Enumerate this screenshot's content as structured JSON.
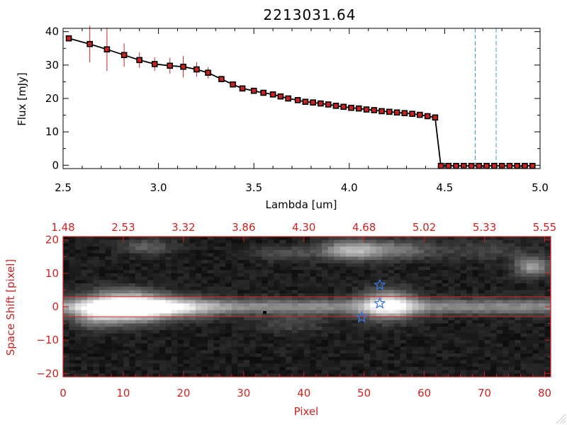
{
  "title": "2213031.64",
  "chart_data": [
    {
      "type": "line",
      "xlabel": "Lambda [um]",
      "ylabel": "Flux [mJy]",
      "xlim": [
        2.5,
        5.0
      ],
      "ylim": [
        -1,
        41
      ],
      "xticks": [
        2.5,
        3.0,
        3.5,
        4.0,
        4.5,
        5.0
      ],
      "xtick_labels": [
        "2.5",
        "3.0",
        "3.5",
        "4.0",
        "4.5",
        "5.0"
      ],
      "yticks": [
        0,
        10,
        20,
        30,
        40
      ],
      "ytick_labels": [
        "0",
        "10",
        "20",
        "30",
        "40"
      ],
      "grid": false,
      "colors": {
        "line": "#000000",
        "marker": "#cc2222",
        "error": "#cc2222",
        "vline": "#3aa0c8"
      },
      "vlines": [
        4.66,
        4.77
      ],
      "series": [
        {
          "x": [
            2.53,
            2.64,
            2.73,
            2.82,
            2.9,
            2.98,
            3.06,
            3.13,
            3.2,
            3.26,
            3.33,
            3.39,
            3.44,
            3.5,
            3.55,
            3.6,
            3.64,
            3.68,
            3.73,
            3.77,
            3.81,
            3.85,
            3.89,
            3.93,
            3.97,
            4.01,
            4.05,
            4.09,
            4.13,
            4.17,
            4.21,
            4.25,
            4.29,
            4.33,
            4.37,
            4.41,
            4.45,
            4.48,
            4.52,
            4.56,
            4.6,
            4.64,
            4.68,
            4.72,
            4.76,
            4.8,
            4.84,
            4.88,
            4.92,
            4.96
          ],
          "y": [
            38.0,
            36.3,
            34.7,
            33.0,
            31.5,
            30.3,
            29.8,
            29.5,
            28.7,
            27.7,
            25.8,
            24.2,
            23.0,
            22.3,
            21.7,
            21.2,
            20.6,
            20.0,
            19.5,
            19.0,
            18.8,
            18.5,
            18.2,
            17.8,
            17.5,
            17.2,
            17.0,
            16.7,
            16.5,
            16.2,
            16.0,
            15.8,
            15.6,
            15.4,
            15.1,
            14.7,
            14.3,
            -0.2,
            -0.2,
            -0.2,
            -0.2,
            -0.2,
            -0.2,
            -0.2,
            -0.2,
            -0.2,
            -0.2,
            -0.2,
            -0.2,
            -0.2
          ],
          "yerr": [
            0.8,
            5.5,
            6.5,
            3.5,
            2.3,
            2.0,
            2.4,
            3.2,
            2.2,
            1.7,
            1.0,
            0.6,
            0.5,
            0.4,
            0.4,
            0.3,
            0.3,
            0.3,
            0.3,
            0.3,
            0.3,
            0.3,
            0.3,
            0.3,
            0.3,
            0.3,
            0.3,
            0.3,
            0.3,
            0.3,
            0.3,
            0.3,
            0.3,
            0.3,
            0.3,
            0.3,
            0.3,
            0.2,
            0.2,
            0.2,
            0.2,
            0.2,
            0.2,
            0.2,
            0.2,
            0.2,
            0.2,
            0.2,
            0.2,
            0.2
          ]
        }
      ]
    },
    {
      "type": "heatmap",
      "xlabel": "Pixel",
      "ylabel": "Space Shift [pixel]",
      "xlim": [
        0,
        81
      ],
      "ylim": [
        -21,
        21
      ],
      "xticks": [
        0,
        10,
        20,
        30,
        40,
        50,
        60,
        70,
        80
      ],
      "xtick_labels": [
        "0",
        "10",
        "20",
        "30",
        "40",
        "50",
        "60",
        "70",
        "80"
      ],
      "yticks": [
        -20,
        -10,
        0,
        10,
        20
      ],
      "ytick_labels": [
        "−20",
        "−10",
        "0",
        "10",
        "20"
      ],
      "top_tick_labels": [
        "1.48",
        "2.53",
        "3.32",
        "3.86",
        "4.30",
        "4.68",
        "5.02",
        "5.33",
        "5.55"
      ],
      "colors": {
        "axis": "#cc2222",
        "star": "#3a78d8"
      },
      "hlines": [
        3,
        -3
      ],
      "stars": [
        {
          "x": 52.6,
          "y": 6.5
        },
        {
          "x": 52.6,
          "y": 1.0
        },
        {
          "x": 49.6,
          "y": -3.2
        }
      ],
      "blobs": [
        {
          "x": 10,
          "y": 0,
          "sx": 4.5,
          "sy": 3.0,
          "amp": 1.0
        },
        {
          "x": 17,
          "y": -0.5,
          "sx": 5.5,
          "sy": 2.2,
          "amp": 0.5
        },
        {
          "x": 5,
          "y": -3,
          "sx": 2.5,
          "sy": 2.5,
          "amp": 0.3
        },
        {
          "x": 54,
          "y": 0.5,
          "sx": 3.0,
          "sy": 3.0,
          "amp": 0.72
        },
        {
          "x": 48,
          "y": 17,
          "sx": 3.5,
          "sy": 2.0,
          "amp": 0.6
        },
        {
          "x": 56,
          "y": 17,
          "sx": 4.0,
          "sy": 2.0,
          "amp": 0.3
        },
        {
          "x": 78,
          "y": 12,
          "sx": 2.0,
          "sy": 2.0,
          "amp": 0.5
        },
        {
          "x": 14,
          "y": 18,
          "sx": 3.0,
          "sy": 1.5,
          "amp": 0.25
        },
        {
          "x": 37,
          "y": 16,
          "sx": 3.5,
          "sy": 1.5,
          "amp": 0.2
        },
        {
          "x": 38,
          "y": -5,
          "sx": 4.0,
          "sy": 2.0,
          "amp": 0.15
        },
        {
          "x": 70,
          "y": 17,
          "sx": 5.0,
          "sy": 2.0,
          "amp": 0.15
        }
      ],
      "trace": {
        "center": 0,
        "sigma": 1.6,
        "amp": 0.42
      }
    }
  ]
}
